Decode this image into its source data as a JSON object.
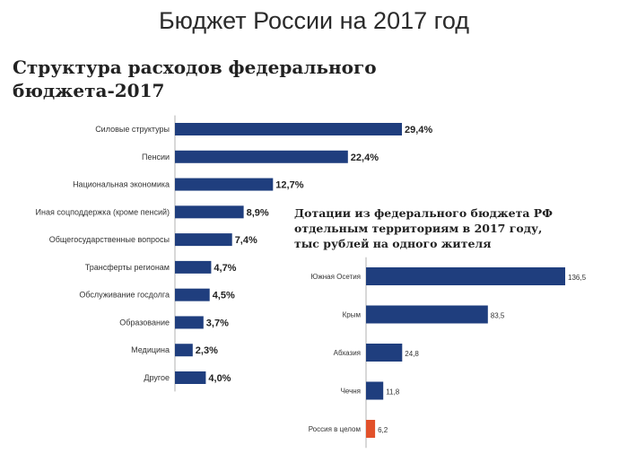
{
  "page": {
    "title": "Бюджет России на 2017 год"
  },
  "colors": {
    "bar": "#1f3e7e",
    "highlight": "#e2512a",
    "axis": "#b0b0b0"
  },
  "chart_data": [
    {
      "type": "bar",
      "orientation": "horizontal",
      "title_lines": [
        "Структура расходов федерального",
        "бюджета-2017"
      ],
      "categories": [
        "Силовые структуры",
        "Пенсии",
        "Национальная экономика",
        "Иная соцподдержка (кроме пенсий)",
        "Общегосударственные вопросы",
        "Трансферты регионам",
        "Обслуживание госдолга",
        "Образование",
        "Медицина",
        "Другое"
      ],
      "values": [
        29.4,
        22.4,
        12.7,
        8.9,
        7.4,
        4.7,
        4.5,
        3.7,
        2.3,
        4.0
      ],
      "value_labels": [
        "29,4%",
        "22,4%",
        "12,7%",
        "8,9%",
        "7,4%",
        "4,7%",
        "4,5%",
        "3,7%",
        "2,3%",
        "4,0%"
      ],
      "unit": "%"
    },
    {
      "type": "bar",
      "orientation": "horizontal",
      "title_lines": [
        "Дотации из федерального бюджета РФ",
        "отдельным территориям в 2017 году,",
        "тыс рублей на одного жителя"
      ],
      "categories": [
        "Южная Осетия",
        "Крым",
        "Абхазия",
        "Чечня",
        "Россия в целом"
      ],
      "values": [
        136.5,
        83.5,
        24.8,
        11.8,
        6.2
      ],
      "value_labels": [
        "136,5",
        "83,5",
        "24,8",
        "11,8",
        "6,2"
      ],
      "highlight_category": "Россия в целом",
      "unit": "тыс рублей на одного жителя"
    }
  ]
}
